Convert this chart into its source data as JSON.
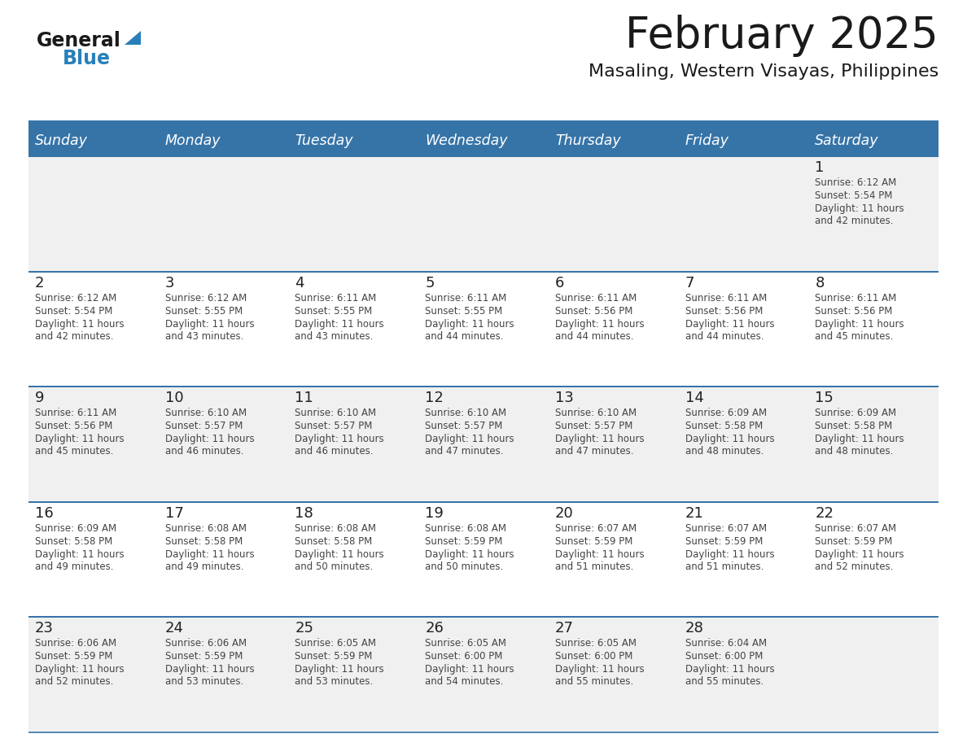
{
  "title": "February 2025",
  "subtitle": "Masaling, Western Visayas, Philippines",
  "days_of_week": [
    "Sunday",
    "Monday",
    "Tuesday",
    "Wednesday",
    "Thursday",
    "Friday",
    "Saturday"
  ],
  "header_bg": "#3674a8",
  "header_text": "#ffffff",
  "cell_bg_odd": "#f0f0f0",
  "cell_bg_even": "#ffffff",
  "separator_color": "#3674a8",
  "text_color": "#444444",
  "day_number_color": "#222222",
  "calendar_data": [
    [
      null,
      null,
      null,
      null,
      null,
      null,
      {
        "day": 1,
        "sunrise": "6:12 AM",
        "sunset": "5:54 PM",
        "daylight": "11 hours and 42 minutes."
      }
    ],
    [
      {
        "day": 2,
        "sunrise": "6:12 AM",
        "sunset": "5:54 PM",
        "daylight": "11 hours and 42 minutes."
      },
      {
        "day": 3,
        "sunrise": "6:12 AM",
        "sunset": "5:55 PM",
        "daylight": "11 hours and 43 minutes."
      },
      {
        "day": 4,
        "sunrise": "6:11 AM",
        "sunset": "5:55 PM",
        "daylight": "11 hours and 43 minutes."
      },
      {
        "day": 5,
        "sunrise": "6:11 AM",
        "sunset": "5:55 PM",
        "daylight": "11 hours and 44 minutes."
      },
      {
        "day": 6,
        "sunrise": "6:11 AM",
        "sunset": "5:56 PM",
        "daylight": "11 hours and 44 minutes."
      },
      {
        "day": 7,
        "sunrise": "6:11 AM",
        "sunset": "5:56 PM",
        "daylight": "11 hours and 44 minutes."
      },
      {
        "day": 8,
        "sunrise": "6:11 AM",
        "sunset": "5:56 PM",
        "daylight": "11 hours and 45 minutes."
      }
    ],
    [
      {
        "day": 9,
        "sunrise": "6:11 AM",
        "sunset": "5:56 PM",
        "daylight": "11 hours and 45 minutes."
      },
      {
        "day": 10,
        "sunrise": "6:10 AM",
        "sunset": "5:57 PM",
        "daylight": "11 hours and 46 minutes."
      },
      {
        "day": 11,
        "sunrise": "6:10 AM",
        "sunset": "5:57 PM",
        "daylight": "11 hours and 46 minutes."
      },
      {
        "day": 12,
        "sunrise": "6:10 AM",
        "sunset": "5:57 PM",
        "daylight": "11 hours and 47 minutes."
      },
      {
        "day": 13,
        "sunrise": "6:10 AM",
        "sunset": "5:57 PM",
        "daylight": "11 hours and 47 minutes."
      },
      {
        "day": 14,
        "sunrise": "6:09 AM",
        "sunset": "5:58 PM",
        "daylight": "11 hours and 48 minutes."
      },
      {
        "day": 15,
        "sunrise": "6:09 AM",
        "sunset": "5:58 PM",
        "daylight": "11 hours and 48 minutes."
      }
    ],
    [
      {
        "day": 16,
        "sunrise": "6:09 AM",
        "sunset": "5:58 PM",
        "daylight": "11 hours and 49 minutes."
      },
      {
        "day": 17,
        "sunrise": "6:08 AM",
        "sunset": "5:58 PM",
        "daylight": "11 hours and 49 minutes."
      },
      {
        "day": 18,
        "sunrise": "6:08 AM",
        "sunset": "5:58 PM",
        "daylight": "11 hours and 50 minutes."
      },
      {
        "day": 19,
        "sunrise": "6:08 AM",
        "sunset": "5:59 PM",
        "daylight": "11 hours and 50 minutes."
      },
      {
        "day": 20,
        "sunrise": "6:07 AM",
        "sunset": "5:59 PM",
        "daylight": "11 hours and 51 minutes."
      },
      {
        "day": 21,
        "sunrise": "6:07 AM",
        "sunset": "5:59 PM",
        "daylight": "11 hours and 51 minutes."
      },
      {
        "day": 22,
        "sunrise": "6:07 AM",
        "sunset": "5:59 PM",
        "daylight": "11 hours and 52 minutes."
      }
    ],
    [
      {
        "day": 23,
        "sunrise": "6:06 AM",
        "sunset": "5:59 PM",
        "daylight": "11 hours and 52 minutes."
      },
      {
        "day": 24,
        "sunrise": "6:06 AM",
        "sunset": "5:59 PM",
        "daylight": "11 hours and 53 minutes."
      },
      {
        "day": 25,
        "sunrise": "6:05 AM",
        "sunset": "5:59 PM",
        "daylight": "11 hours and 53 minutes."
      },
      {
        "day": 26,
        "sunrise": "6:05 AM",
        "sunset": "6:00 PM",
        "daylight": "11 hours and 54 minutes."
      },
      {
        "day": 27,
        "sunrise": "6:05 AM",
        "sunset": "6:00 PM",
        "daylight": "11 hours and 55 minutes."
      },
      {
        "day": 28,
        "sunrise": "6:04 AM",
        "sunset": "6:00 PM",
        "daylight": "11 hours and 55 minutes."
      },
      null
    ]
  ]
}
